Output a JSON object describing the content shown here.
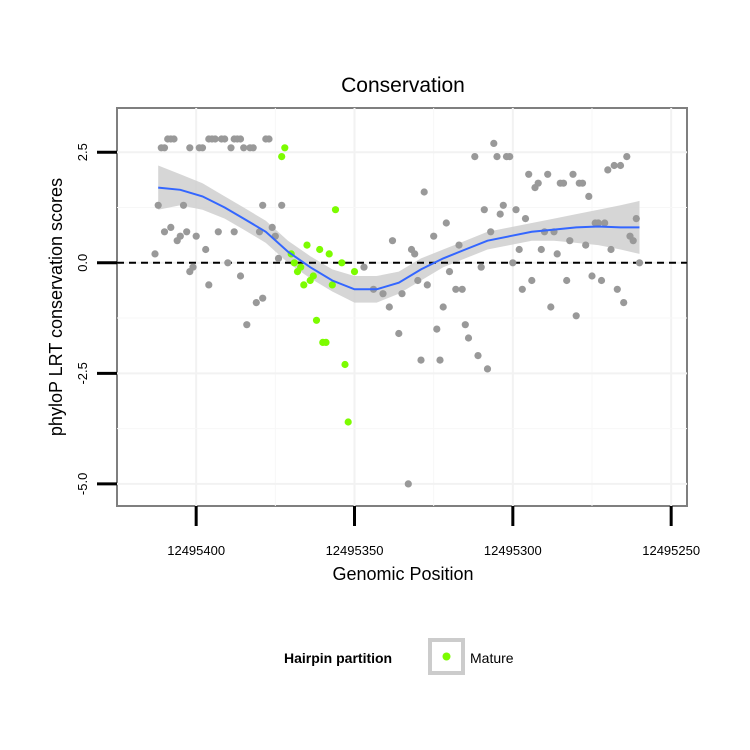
{
  "chart_data": {
    "type": "scatter",
    "title": "Conservation",
    "xlabel": "Genomic Position",
    "ylabel": "phyloP LRT conservation scores",
    "x_reversed": true,
    "xlim": [
      12495425,
      12495245
    ],
    "ylim": [
      -5.5,
      3.5
    ],
    "x_ticks": [
      12495400,
      12495350,
      12495300,
      12495250
    ],
    "x_tick_labels": [
      "12495400",
      "12495350",
      "12495300",
      "12495250"
    ],
    "y_ticks": [
      2.5,
      0.0,
      -2.5,
      -5.0
    ],
    "y_tick_labels": [
      "2.5",
      "0.0",
      "-2.5",
      "-5.0"
    ],
    "grid": true,
    "reference_line": {
      "y": 0,
      "style": "dashed"
    },
    "legend": {
      "title": "Hairpin partition",
      "placement": "bottom",
      "entries": [
        {
          "label": "Mature",
          "color": "#7cfc00"
        }
      ]
    },
    "colors": {
      "other": "#999999",
      "mature": "#7cfc00",
      "smooth": "#3366ff",
      "band": "#cccccc"
    },
    "series": [
      {
        "group": "other",
        "points": [
          [
            12495413,
            0.2
          ],
          [
            12495412,
            1.3
          ],
          [
            12495411,
            2.6
          ],
          [
            12495410,
            2.6
          ],
          [
            12495410,
            0.7
          ],
          [
            12495409,
            2.8
          ],
          [
            12495408,
            2.8
          ],
          [
            12495408,
            0.8
          ],
          [
            12495407,
            2.8
          ],
          [
            12495406,
            0.5
          ],
          [
            12495405,
            0.6
          ],
          [
            12495404,
            1.3
          ],
          [
            12495403,
            0.7
          ],
          [
            12495402,
            2.6
          ],
          [
            12495402,
            -0.2
          ],
          [
            12495401,
            -0.1
          ],
          [
            12495400,
            0.6
          ],
          [
            12495399,
            2.6
          ],
          [
            12495398,
            2.6
          ],
          [
            12495397,
            0.3
          ],
          [
            12495396,
            2.8
          ],
          [
            12495396,
            -0.5
          ],
          [
            12495395,
            2.8
          ],
          [
            12495394,
            2.8
          ],
          [
            12495393,
            0.7
          ],
          [
            12495392,
            2.8
          ],
          [
            12495391,
            2.8
          ],
          [
            12495390,
            0.0
          ],
          [
            12495389,
            2.6
          ],
          [
            12495388,
            2.8
          ],
          [
            12495388,
            0.7
          ],
          [
            12495387,
            2.8
          ],
          [
            12495386,
            2.8
          ],
          [
            12495386,
            -0.3
          ],
          [
            12495385,
            2.6
          ],
          [
            12495384,
            -1.4
          ],
          [
            12495383,
            2.6
          ],
          [
            12495382,
            2.6
          ],
          [
            12495381,
            -0.9
          ],
          [
            12495380,
            0.7
          ],
          [
            12495379,
            1.3
          ],
          [
            12495379,
            -0.8
          ],
          [
            12495378,
            2.8
          ],
          [
            12495377,
            2.8
          ],
          [
            12495376,
            0.8
          ],
          [
            12495375,
            0.6
          ],
          [
            12495374,
            0.1
          ],
          [
            12495373,
            1.3
          ],
          [
            12495347,
            -0.1
          ],
          [
            12495344,
            -0.6
          ],
          [
            12495341,
            -0.7
          ],
          [
            12495339,
            -1.0
          ],
          [
            12495338,
            0.5
          ],
          [
            12495336,
            -1.6
          ],
          [
            12495335,
            -0.7
          ],
          [
            12495333,
            -5.0
          ],
          [
            12495332,
            0.3
          ],
          [
            12495331,
            0.2
          ],
          [
            12495330,
            -0.4
          ],
          [
            12495329,
            -2.2
          ],
          [
            12495328,
            1.6
          ],
          [
            12495327,
            -0.5
          ],
          [
            12495325,
            0.6
          ],
          [
            12495324,
            -1.5
          ],
          [
            12495323,
            -2.2
          ],
          [
            12495322,
            -1.0
          ],
          [
            12495321,
            0.9
          ],
          [
            12495320,
            -0.2
          ],
          [
            12495318,
            -0.6
          ],
          [
            12495317,
            0.4
          ],
          [
            12495316,
            -0.6
          ],
          [
            12495315,
            -1.4
          ],
          [
            12495314,
            -1.7
          ],
          [
            12495312,
            2.4
          ],
          [
            12495311,
            -2.1
          ],
          [
            12495310,
            -0.1
          ],
          [
            12495309,
            1.2
          ],
          [
            12495308,
            -2.4
          ],
          [
            12495307,
            0.7
          ],
          [
            12495306,
            2.7
          ],
          [
            12495305,
            2.4
          ],
          [
            12495304,
            1.1
          ],
          [
            12495303,
            1.3
          ],
          [
            12495302,
            2.4
          ],
          [
            12495301,
            2.4
          ],
          [
            12495300,
            0.0
          ],
          [
            12495299,
            1.2
          ],
          [
            12495298,
            0.3
          ],
          [
            12495297,
            -0.6
          ],
          [
            12495296,
            1.0
          ],
          [
            12495295,
            2.0
          ],
          [
            12495294,
            -0.4
          ],
          [
            12495293,
            1.7
          ],
          [
            12495292,
            1.8
          ],
          [
            12495291,
            0.3
          ],
          [
            12495290,
            0.7
          ],
          [
            12495289,
            2.0
          ],
          [
            12495288,
            -1.0
          ],
          [
            12495287,
            0.7
          ],
          [
            12495286,
            0.2
          ],
          [
            12495285,
            1.8
          ],
          [
            12495284,
            1.8
          ],
          [
            12495283,
            -0.4
          ],
          [
            12495282,
            0.5
          ],
          [
            12495281,
            2.0
          ],
          [
            12495280,
            -1.2
          ],
          [
            12495279,
            1.8
          ],
          [
            12495278,
            1.8
          ],
          [
            12495277,
            0.4
          ],
          [
            12495276,
            1.5
          ],
          [
            12495275,
            -0.3
          ],
          [
            12495274,
            0.9
          ],
          [
            12495273,
            0.9
          ],
          [
            12495272,
            -0.4
          ],
          [
            12495271,
            0.9
          ],
          [
            12495270,
            2.1
          ],
          [
            12495269,
            0.3
          ],
          [
            12495268,
            2.2
          ],
          [
            12495267,
            -0.6
          ],
          [
            12495266,
            2.2
          ],
          [
            12495265,
            -0.9
          ],
          [
            12495264,
            2.4
          ],
          [
            12495263,
            0.6
          ],
          [
            12495262,
            0.5
          ],
          [
            12495261,
            1.0
          ],
          [
            12495260,
            0.0
          ]
        ]
      },
      {
        "group": "mature",
        "name": "Mature",
        "points": [
          [
            12495372,
            2.6
          ],
          [
            12495373,
            2.4
          ],
          [
            12495370,
            0.2
          ],
          [
            12495369,
            0.0
          ],
          [
            12495368,
            -0.2
          ],
          [
            12495367,
            -0.1
          ],
          [
            12495366,
            -0.5
          ],
          [
            12495365,
            0.4
          ],
          [
            12495364,
            -0.4
          ],
          [
            12495363,
            -0.3
          ],
          [
            12495362,
            -1.3
          ],
          [
            12495361,
            0.3
          ],
          [
            12495360,
            -1.8
          ],
          [
            12495359,
            -1.8
          ],
          [
            12495358,
            0.2
          ],
          [
            12495357,
            -0.5
          ],
          [
            12495356,
            1.2
          ],
          [
            12495354,
            0.0
          ],
          [
            12495353,
            -2.3
          ],
          [
            12495352,
            -3.6
          ],
          [
            12495350,
            -0.2
          ]
        ]
      }
    ],
    "smooth": {
      "x": [
        12495412,
        12495405,
        12495398,
        12495391,
        12495385,
        12495378,
        12495371,
        12495364,
        12495357,
        12495350,
        12495343,
        12495336,
        12495329,
        12495322,
        12495315,
        12495308,
        12495301,
        12495294,
        12495287,
        12495280,
        12495273,
        12495266,
        12495260
      ],
      "y": [
        1.7,
        1.65,
        1.5,
        1.25,
        1.0,
        0.7,
        0.25,
        -0.1,
        -0.4,
        -0.6,
        -0.6,
        -0.45,
        -0.15,
        0.1,
        0.3,
        0.5,
        0.6,
        0.7,
        0.75,
        0.8,
        0.82,
        0.8,
        0.8
      ],
      "lower": [
        1.2,
        1.3,
        1.2,
        1.0,
        0.75,
        0.45,
        0.0,
        -0.35,
        -0.65,
        -0.9,
        -0.9,
        -0.7,
        -0.4,
        -0.1,
        0.1,
        0.3,
        0.4,
        0.5,
        0.5,
        0.45,
        0.4,
        0.3,
        0.2
      ],
      "upper": [
        2.2,
        2.0,
        1.8,
        1.5,
        1.25,
        0.95,
        0.5,
        0.15,
        -0.15,
        -0.3,
        -0.3,
        -0.2,
        0.1,
        0.3,
        0.5,
        0.7,
        0.8,
        0.9,
        1.0,
        1.1,
        1.2,
        1.3,
        1.4
      ]
    }
  }
}
